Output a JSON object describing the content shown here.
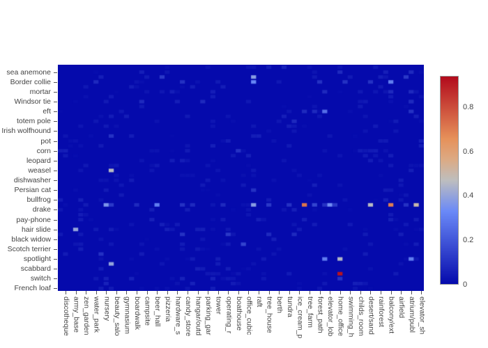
{
  "figure": {
    "background": "#ffffff",
    "axis_color": "#444444",
    "tick_color": "#555555"
  },
  "chart_data": {
    "type": "heatmap",
    "title": "",
    "xlabel": "",
    "ylabel": "",
    "x_tick_labels": [
      "discotheque",
      "army_base",
      "zen_garden",
      "water_park",
      "nursery",
      "beauty_salo",
      "gymnasium",
      "boardwalk",
      "campsite",
      "beer_hall",
      "pizzeria",
      "hardware_s",
      "candy_store",
      "hangar/outd",
      "parking_gar",
      "tower",
      "operating_r",
      "boathouse",
      "office_cubic",
      "raft",
      "tree_house",
      "berth",
      "tundra",
      "ice_cream_p",
      "tree_farm",
      "forest_path",
      "elevator_lob",
      "home_office",
      "swimming_h",
      "childs_room",
      "desert/sand",
      "rainforest",
      "balcony/ext",
      "airfield",
      "atrium/publ",
      "elevator_sh"
    ],
    "y_tick_labels": [
      "sea anemone",
      "Border collie",
      "mortar",
      "Windsor tie",
      "eft",
      "totem pole",
      "Irish wolfhound",
      "pot",
      "corn",
      "leopard",
      "weasel",
      "dishwasher",
      "Persian cat",
      "bullfrog",
      "drake",
      "pay-phone",
      "hair slide",
      "black widow",
      "Scotch terrier",
      "spotlight",
      "scabbard",
      "switch",
      "French loaf"
    ],
    "grid": {
      "rows": 46,
      "cols": 72,
      "labeled_every": 2
    },
    "zmin": 0,
    "zmax": 0.94,
    "baseline_value": 0.0,
    "noise": {
      "density": 0.12,
      "max": 0.055,
      "seed": 13
    },
    "anomalies": [
      {
        "r": 0,
        "c": 44,
        "v": 0.06
      },
      {
        "r": 1,
        "c": 55,
        "v": 0.08
      },
      {
        "r": 1,
        "c": 69,
        "v": 0.08
      },
      {
        "r": 2,
        "c": 20,
        "v": 0.12
      },
      {
        "r": 2,
        "c": 38,
        "v": 0.38
      },
      {
        "r": 2,
        "c": 68,
        "v": 0.12
      },
      {
        "r": 3,
        "c": 7,
        "v": 0.08
      },
      {
        "r": 3,
        "c": 24,
        "v": 0.1
      },
      {
        "r": 3,
        "c": 38,
        "v": 0.32
      },
      {
        "r": 3,
        "c": 51,
        "v": 0.1
      },
      {
        "r": 3,
        "c": 56,
        "v": 0.1
      },
      {
        "r": 3,
        "c": 61,
        "v": 0.1
      },
      {
        "r": 3,
        "c": 65,
        "v": 0.3
      },
      {
        "r": 5,
        "c": 52,
        "v": 0.08
      },
      {
        "r": 5,
        "c": 65,
        "v": 0.08
      },
      {
        "r": 5,
        "c": 69,
        "v": 0.08
      },
      {
        "r": 7,
        "c": 16,
        "v": 0.08
      },
      {
        "r": 7,
        "c": 28,
        "v": 0.08
      },
      {
        "r": 7,
        "c": 69,
        "v": 0.08
      },
      {
        "r": 9,
        "c": 48,
        "v": 0.08
      },
      {
        "r": 9,
        "c": 50,
        "v": 0.08
      },
      {
        "r": 9,
        "c": 52,
        "v": 0.26
      },
      {
        "r": 9,
        "c": 69,
        "v": 0.1
      },
      {
        "r": 11,
        "c": 46,
        "v": 0.08
      },
      {
        "r": 14,
        "c": 10,
        "v": 0.1
      },
      {
        "r": 17,
        "c": 35,
        "v": 0.1
      },
      {
        "r": 21,
        "c": 10,
        "v": 0.46
      },
      {
        "r": 25,
        "c": 38,
        "v": 0.1
      },
      {
        "r": 28,
        "c": 9,
        "v": 0.36
      },
      {
        "r": 28,
        "c": 10,
        "v": 0.12
      },
      {
        "r": 28,
        "c": 15,
        "v": 0.08
      },
      {
        "r": 28,
        "c": 19,
        "v": 0.3
      },
      {
        "r": 28,
        "c": 24,
        "v": 0.1
      },
      {
        "r": 28,
        "c": 26,
        "v": 0.08
      },
      {
        "r": 28,
        "c": 32,
        "v": 0.08
      },
      {
        "r": 28,
        "c": 38,
        "v": 0.38
      },
      {
        "r": 28,
        "c": 41,
        "v": 0.12
      },
      {
        "r": 28,
        "c": 45,
        "v": 0.1
      },
      {
        "r": 28,
        "c": 48,
        "v": 0.72
      },
      {
        "r": 28,
        "c": 50,
        "v": 0.15
      },
      {
        "r": 28,
        "c": 52,
        "v": 0.1
      },
      {
        "r": 28,
        "c": 53,
        "v": 0.34
      },
      {
        "r": 28,
        "c": 54,
        "v": 0.12
      },
      {
        "r": 28,
        "c": 61,
        "v": 0.46
      },
      {
        "r": 28,
        "c": 65,
        "v": 0.7
      },
      {
        "r": 28,
        "c": 68,
        "v": 0.1
      },
      {
        "r": 28,
        "c": 70,
        "v": 0.5
      },
      {
        "r": 33,
        "c": 3,
        "v": 0.4
      },
      {
        "r": 34,
        "c": 24,
        "v": 0.1
      },
      {
        "r": 34,
        "c": 33,
        "v": 0.12
      },
      {
        "r": 34,
        "c": 41,
        "v": 0.08
      },
      {
        "r": 34,
        "c": 46,
        "v": 0.08
      },
      {
        "r": 36,
        "c": 36,
        "v": 0.15
      },
      {
        "r": 38,
        "c": 8,
        "v": 0.1
      },
      {
        "r": 39,
        "c": 52,
        "v": 0.3
      },
      {
        "r": 39,
        "c": 55,
        "v": 0.45
      },
      {
        "r": 39,
        "c": 69,
        "v": 0.3
      },
      {
        "r": 40,
        "c": 10,
        "v": 0.4
      },
      {
        "r": 42,
        "c": 55,
        "v": 0.92
      },
      {
        "r": 43,
        "c": 14,
        "v": 0.06
      },
      {
        "r": 43,
        "c": 24,
        "v": 0.06
      },
      {
        "r": 43,
        "c": 30,
        "v": 0.06
      },
      {
        "r": 43,
        "c": 55,
        "v": 0.1
      },
      {
        "r": 44,
        "c": 9,
        "v": 0.06
      },
      {
        "r": 44,
        "c": 26,
        "v": 0.06
      }
    ],
    "colorscale": [
      [
        0.0,
        "#050AAC"
      ],
      [
        0.35,
        "#6A89F7"
      ],
      [
        0.5,
        "#BEBEBE"
      ],
      [
        0.6,
        "#DCAA84"
      ],
      [
        0.7,
        "#E6915A"
      ],
      [
        1.0,
        "#B20A1C"
      ]
    ],
    "colorbar": {
      "tick_labels": [
        "0",
        "0.2",
        "0.4",
        "0.6",
        "0.8"
      ],
      "tick_values": [
        0,
        0.2,
        0.4,
        0.6,
        0.8
      ],
      "position": "right"
    },
    "legend": "none",
    "grid_lines": "off"
  }
}
